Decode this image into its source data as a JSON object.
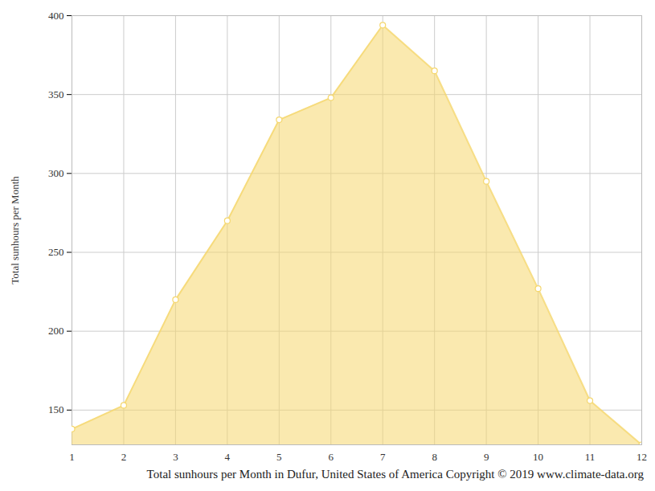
{
  "chart_data": {
    "type": "area",
    "caption": "Total sunhours per Month in Dufur, United States of America Copyright © 2019 www.climate-data.org",
    "ylabel": "Total sunhours per Month",
    "x": [
      1,
      2,
      3,
      4,
      5,
      6,
      7,
      8,
      9,
      10,
      11,
      12
    ],
    "values": [
      138,
      153,
      220,
      270,
      334,
      348,
      394,
      365,
      295,
      227,
      156,
      128
    ],
    "color": "#f5d76e",
    "marker": "circle",
    "xlim": [
      1,
      12
    ],
    "xticks": [
      1,
      2,
      3,
      4,
      5,
      6,
      7,
      8,
      9,
      10,
      11,
      12
    ],
    "ylim": [
      128,
      400
    ],
    "yticks": [
      150,
      200,
      250,
      300,
      350,
      400
    ],
    "grid": true
  }
}
